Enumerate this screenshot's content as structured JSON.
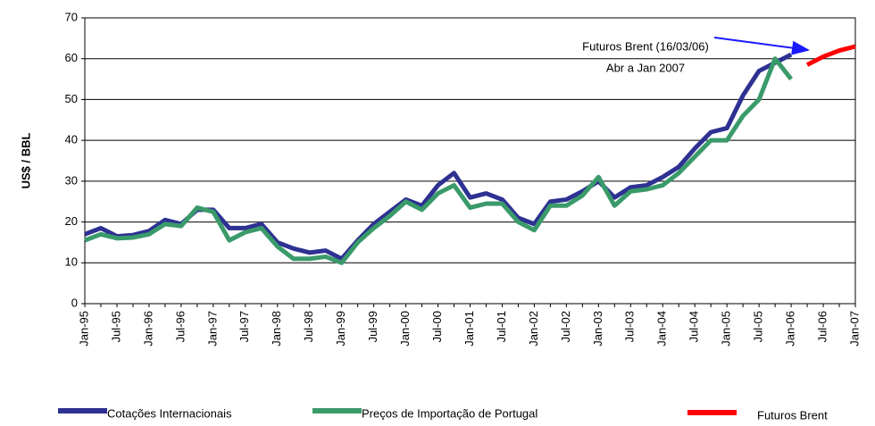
{
  "chart_data": {
    "type": "line",
    "y_label": "US$ / BBL",
    "annotation": [
      "Futuros Brent (16/03/06)",
      "Abr a Jan 2007"
    ],
    "categories": [
      "Jan-95",
      null,
      "Jul-95",
      null,
      "Jan-96",
      null,
      "Jul-96",
      null,
      "Jan-97",
      null,
      "Jul-97",
      null,
      "Jan-98",
      null,
      "Jul-98",
      null,
      "Jan-99",
      null,
      "Jul-99",
      null,
      "Jan-00",
      null,
      "Jul-00",
      null,
      "Jan-01",
      null,
      "Jul-01",
      null,
      "Jan-02",
      null,
      "Jul-02",
      null,
      "Jan-03",
      null,
      "Jul-03",
      null,
      "Jan-04",
      null,
      "Jul-04",
      null,
      "Jan-05",
      null,
      "Jul-05",
      null,
      "Jan-06",
      null,
      "Jul-06",
      null,
      "Jan-07"
    ],
    "series": [
      {
        "name": "Cotações Internacionais",
        "color": "#2e3192",
        "values": [
          17,
          18.5,
          16.5,
          16.8,
          17.8,
          20.5,
          19.5,
          23,
          23,
          18.5,
          18.5,
          19.5,
          15,
          13.5,
          12.5,
          13,
          11,
          15.5,
          19.5,
          22.5,
          25.5,
          24,
          29,
          32,
          26,
          27,
          25.5,
          21,
          19.5,
          25,
          25.5,
          27.5,
          30,
          26,
          28.5,
          29,
          31,
          33.5,
          38,
          42,
          43,
          51,
          57,
          59,
          61,
          null,
          null,
          null,
          null
        ]
      },
      {
        "name": "Preços de Importação de Portugal",
        "color": "#3a9a6a",
        "values": [
          15.5,
          17,
          16,
          16.2,
          17,
          19.5,
          19,
          23.5,
          22.5,
          15.5,
          17.5,
          18.5,
          14,
          11,
          11,
          11.5,
          10,
          15,
          18.5,
          21.5,
          25,
          23,
          27,
          29,
          23.5,
          24.5,
          24.5,
          20,
          18,
          24,
          24,
          26.5,
          31,
          24,
          27.5,
          28,
          29,
          32,
          36,
          40,
          40,
          46,
          50,
          60,
          55,
          null,
          null,
          null,
          null
        ]
      },
      {
        "name": "Futuros Brent",
        "color": "#ff0000",
        "values": [
          null,
          null,
          null,
          null,
          null,
          null,
          null,
          null,
          null,
          null,
          null,
          null,
          null,
          null,
          null,
          null,
          null,
          null,
          null,
          null,
          null,
          null,
          null,
          null,
          null,
          null,
          null,
          null,
          null,
          null,
          null,
          null,
          null,
          null,
          null,
          null,
          null,
          null,
          null,
          null,
          null,
          null,
          null,
          null,
          null,
          58.5,
          60.5,
          62,
          63
        ]
      }
    ],
    "ylim": [
      0,
      70
    ],
    "yticks": [
      0,
      10,
      20,
      30,
      40,
      50,
      60,
      70
    ],
    "grid": true
  }
}
